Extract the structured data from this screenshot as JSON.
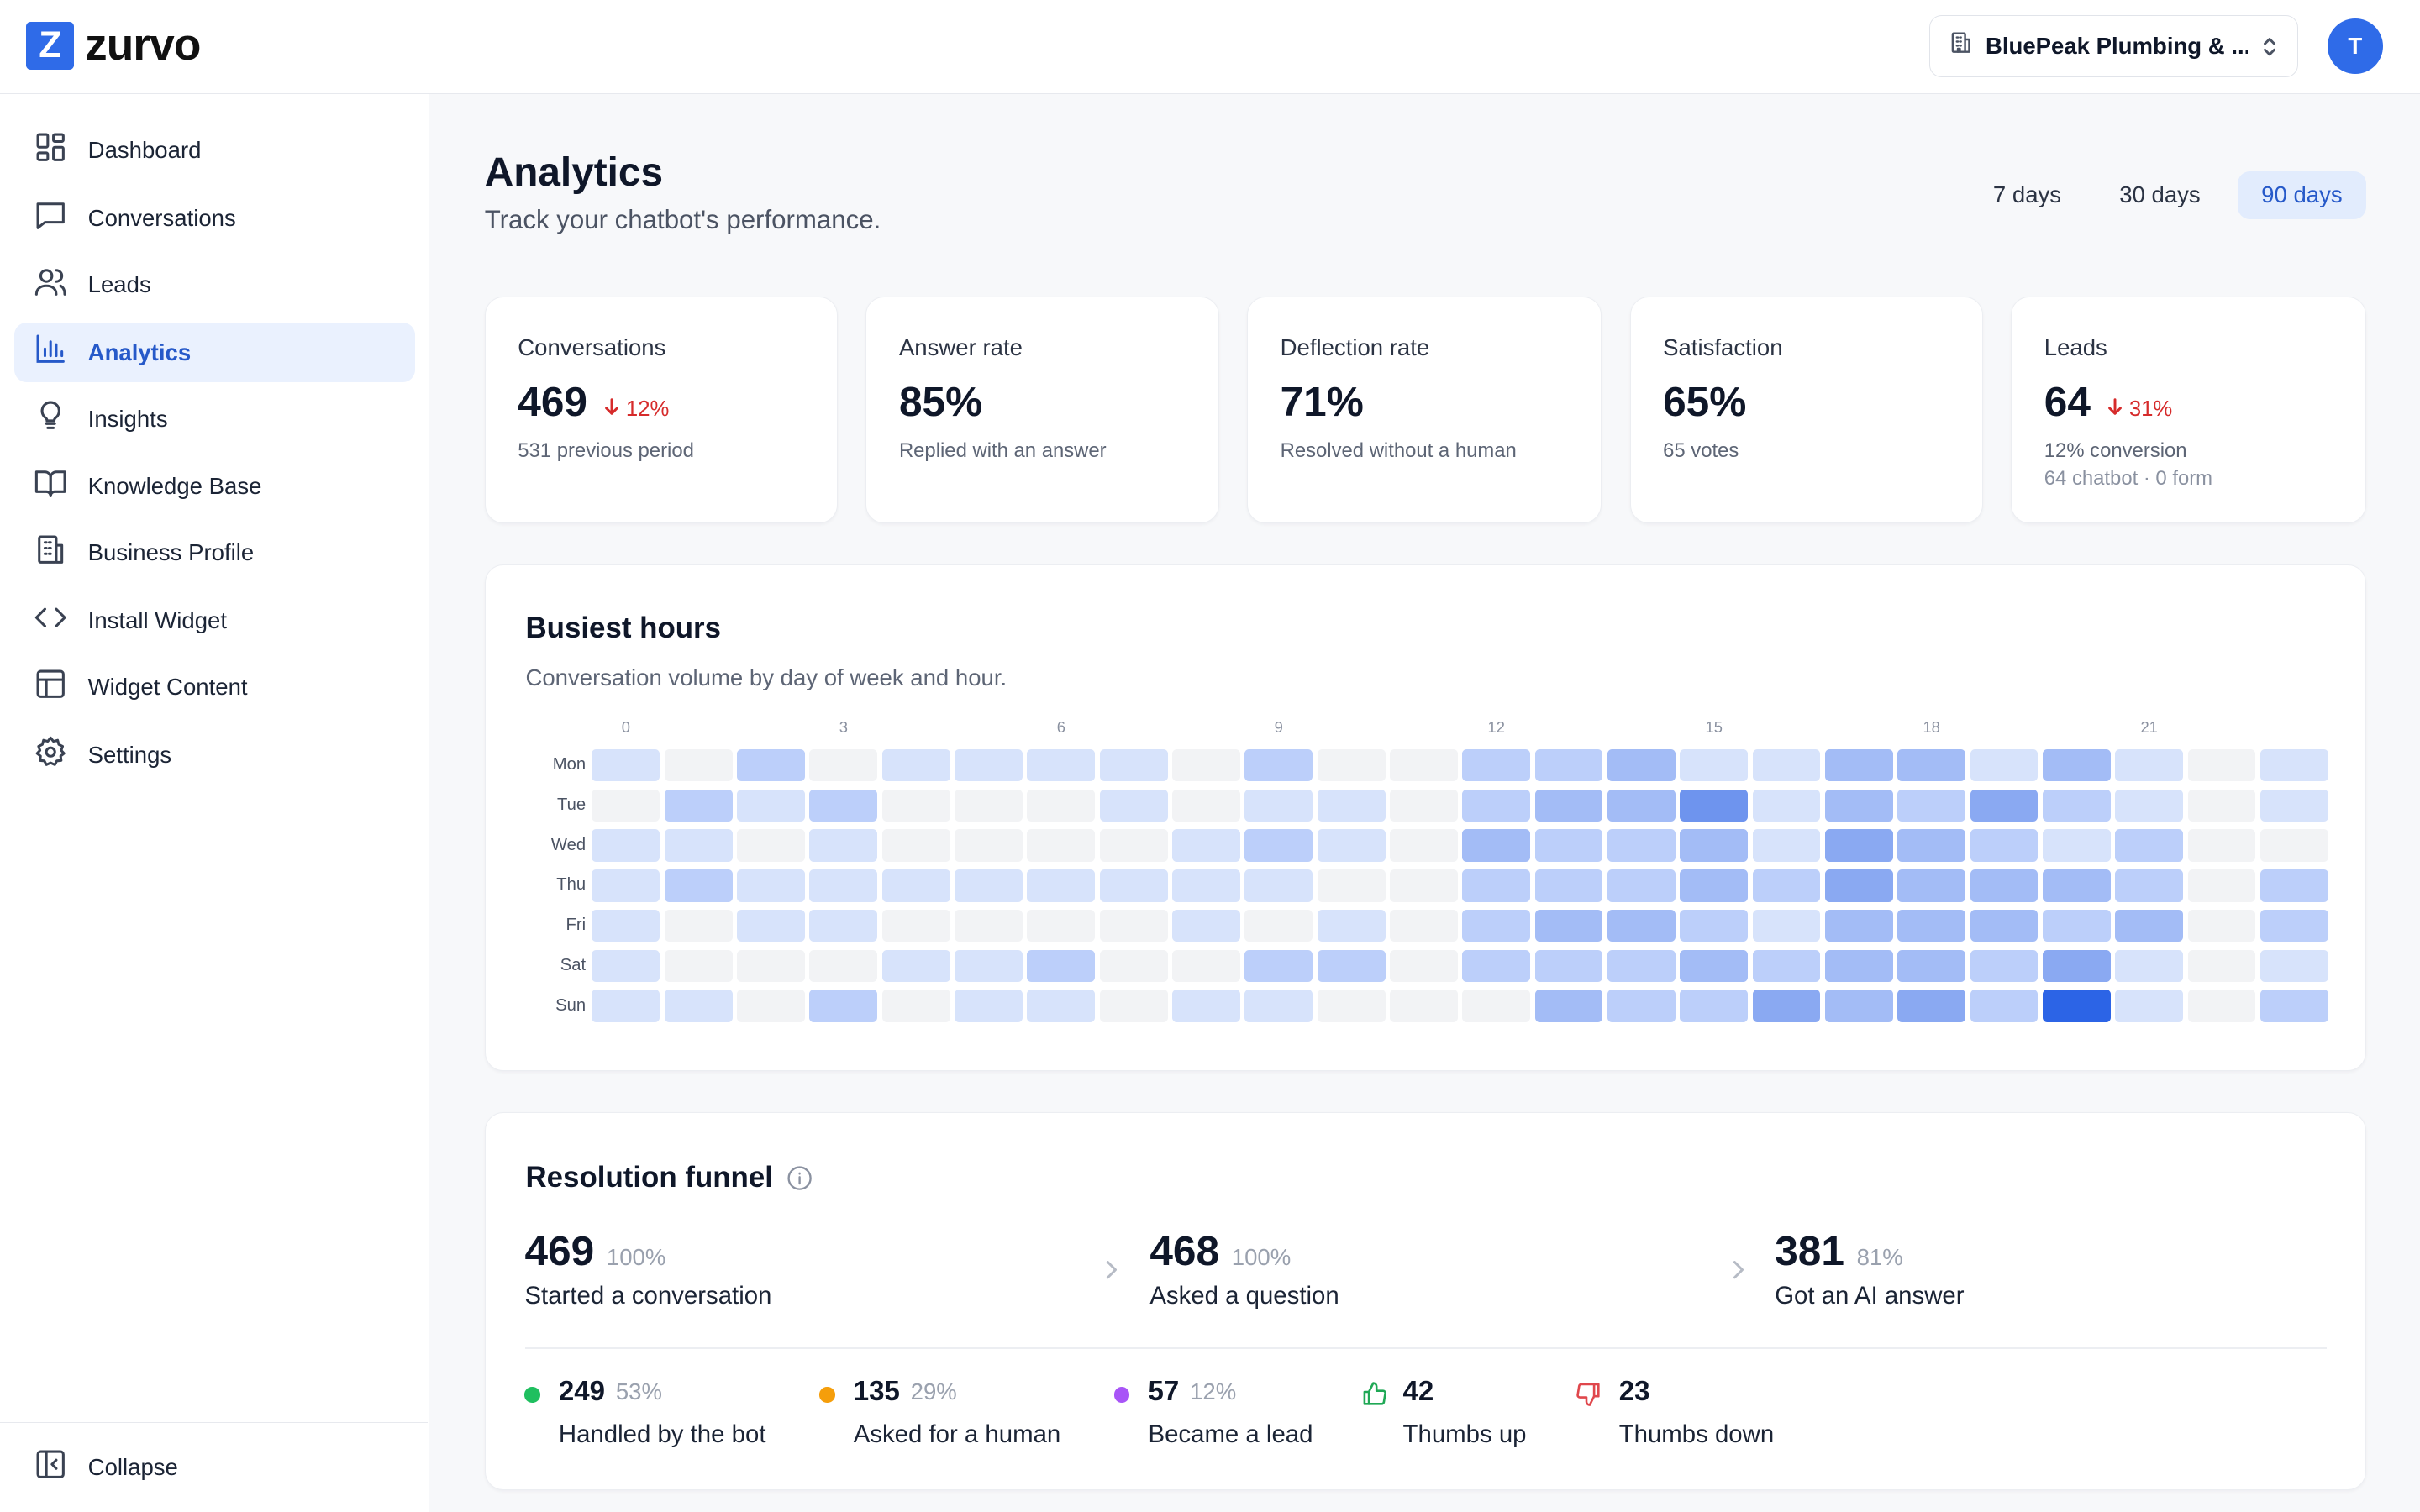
{
  "app": {
    "logo_letter": "Z",
    "name": "zurvo"
  },
  "header": {
    "business_name": "BluePeak Plumbing & ...",
    "avatar_initial": "T"
  },
  "sidebar": {
    "items": [
      {
        "label": "Dashboard",
        "icon": "dashboard-icon"
      },
      {
        "label": "Conversations",
        "icon": "chat-bubble-icon"
      },
      {
        "label": "Leads",
        "icon": "users-icon"
      },
      {
        "label": "Analytics",
        "icon": "bar-chart-icon",
        "active": true
      },
      {
        "label": "Insights",
        "icon": "lightbulb-icon"
      },
      {
        "label": "Knowledge Base",
        "icon": "book-icon"
      },
      {
        "label": "Business Profile",
        "icon": "building-icon"
      },
      {
        "label": "Install Widget",
        "icon": "code-icon"
      },
      {
        "label": "Widget Content",
        "icon": "layout-icon"
      },
      {
        "label": "Settings",
        "icon": "gear-icon"
      }
    ],
    "collapse_label": "Collapse"
  },
  "page": {
    "title": "Analytics",
    "subtitle": "Track your chatbot's performance."
  },
  "ranges": [
    {
      "label": "7 days"
    },
    {
      "label": "30 days"
    },
    {
      "label": "90 days",
      "selected": true
    }
  ],
  "stats": [
    {
      "label": "Conversations",
      "value": "469",
      "delta": "12%",
      "note": "531 previous period",
      "note2": ""
    },
    {
      "label": "Answer rate",
      "value": "85%",
      "delta": "",
      "note": "Replied with an answer",
      "note2": ""
    },
    {
      "label": "Deflection rate",
      "value": "71%",
      "delta": "",
      "note": "Resolved without a human",
      "note2": ""
    },
    {
      "label": "Satisfaction",
      "value": "65%",
      "delta": "",
      "note": "65 votes",
      "note2": ""
    },
    {
      "label": "Leads",
      "value": "64",
      "delta": "31%",
      "note": "12% conversion",
      "note2": "64 chatbot · 0 form"
    }
  ],
  "colors": {
    "accent": "#2f6be8",
    "negative": "#d62b2b",
    "green": "#1fbf5f",
    "orange": "#f59e0b",
    "purple": "#a855f7"
  },
  "busiest": {
    "title": "Busiest hours",
    "subtitle": "Conversation volume by day of week and hour.",
    "hour_ticks": [
      "0",
      "3",
      "6",
      "9",
      "12",
      "15",
      "18",
      "21"
    ],
    "days": [
      "Mon",
      "Tue",
      "Wed",
      "Thu",
      "Fri",
      "Sat",
      "Sun"
    ],
    "levels": [
      [
        1,
        0,
        2,
        0,
        1,
        1,
        1,
        1,
        0,
        2,
        0,
        0,
        2,
        2,
        3,
        1,
        1,
        3,
        3,
        1,
        3,
        1,
        0,
        1
      ],
      [
        0,
        2,
        1,
        2,
        0,
        0,
        0,
        1,
        0,
        1,
        1,
        0,
        2,
        3,
        3,
        5,
        1,
        3,
        2,
        4,
        2,
        1,
        0,
        1
      ],
      [
        1,
        1,
        0,
        1,
        0,
        0,
        0,
        0,
        1,
        2,
        1,
        0,
        3,
        2,
        2,
        3,
        1,
        4,
        3,
        2,
        1,
        2,
        0,
        0
      ],
      [
        1,
        2,
        1,
        1,
        1,
        1,
        1,
        1,
        1,
        1,
        0,
        0,
        2,
        2,
        2,
        3,
        2,
        4,
        3,
        3,
        3,
        2,
        0,
        2
      ],
      [
        1,
        0,
        1,
        1,
        0,
        0,
        0,
        0,
        1,
        0,
        1,
        0,
        2,
        3,
        3,
        2,
        1,
        3,
        3,
        3,
        2,
        3,
        0,
        2
      ],
      [
        1,
        0,
        0,
        0,
        1,
        1,
        2,
        0,
        0,
        2,
        2,
        0,
        2,
        2,
        2,
        3,
        2,
        3,
        3,
        2,
        4,
        1,
        0,
        1
      ],
      [
        1,
        1,
        0,
        2,
        0,
        1,
        1,
        0,
        1,
        1,
        0,
        0,
        0,
        3,
        2,
        2,
        4,
        3,
        4,
        2,
        6,
        1,
        0,
        2
      ]
    ]
  },
  "funnel": {
    "title": "Resolution funnel",
    "steps": [
      {
        "value": "469",
        "pct": "100%",
        "label": "Started a conversation"
      },
      {
        "value": "468",
        "pct": "100%",
        "label": "Asked a question"
      },
      {
        "value": "381",
        "pct": "81%",
        "label": "Got an AI answer"
      }
    ],
    "outcomes": [
      {
        "value": "249",
        "pct": "53%",
        "label": "Handled by the bot",
        "marker": "green-dot"
      },
      {
        "value": "135",
        "pct": "29%",
        "label": "Asked for a human",
        "marker": "orange-dot"
      },
      {
        "value": "57",
        "pct": "12%",
        "label": "Became a lead",
        "marker": "purple-dot"
      },
      {
        "value": "42",
        "pct": "",
        "label": "Thumbs up",
        "marker": "thumbs-up-icon"
      },
      {
        "value": "23",
        "pct": "",
        "label": "Thumbs down",
        "marker": "thumbs-down-icon"
      }
    ]
  }
}
